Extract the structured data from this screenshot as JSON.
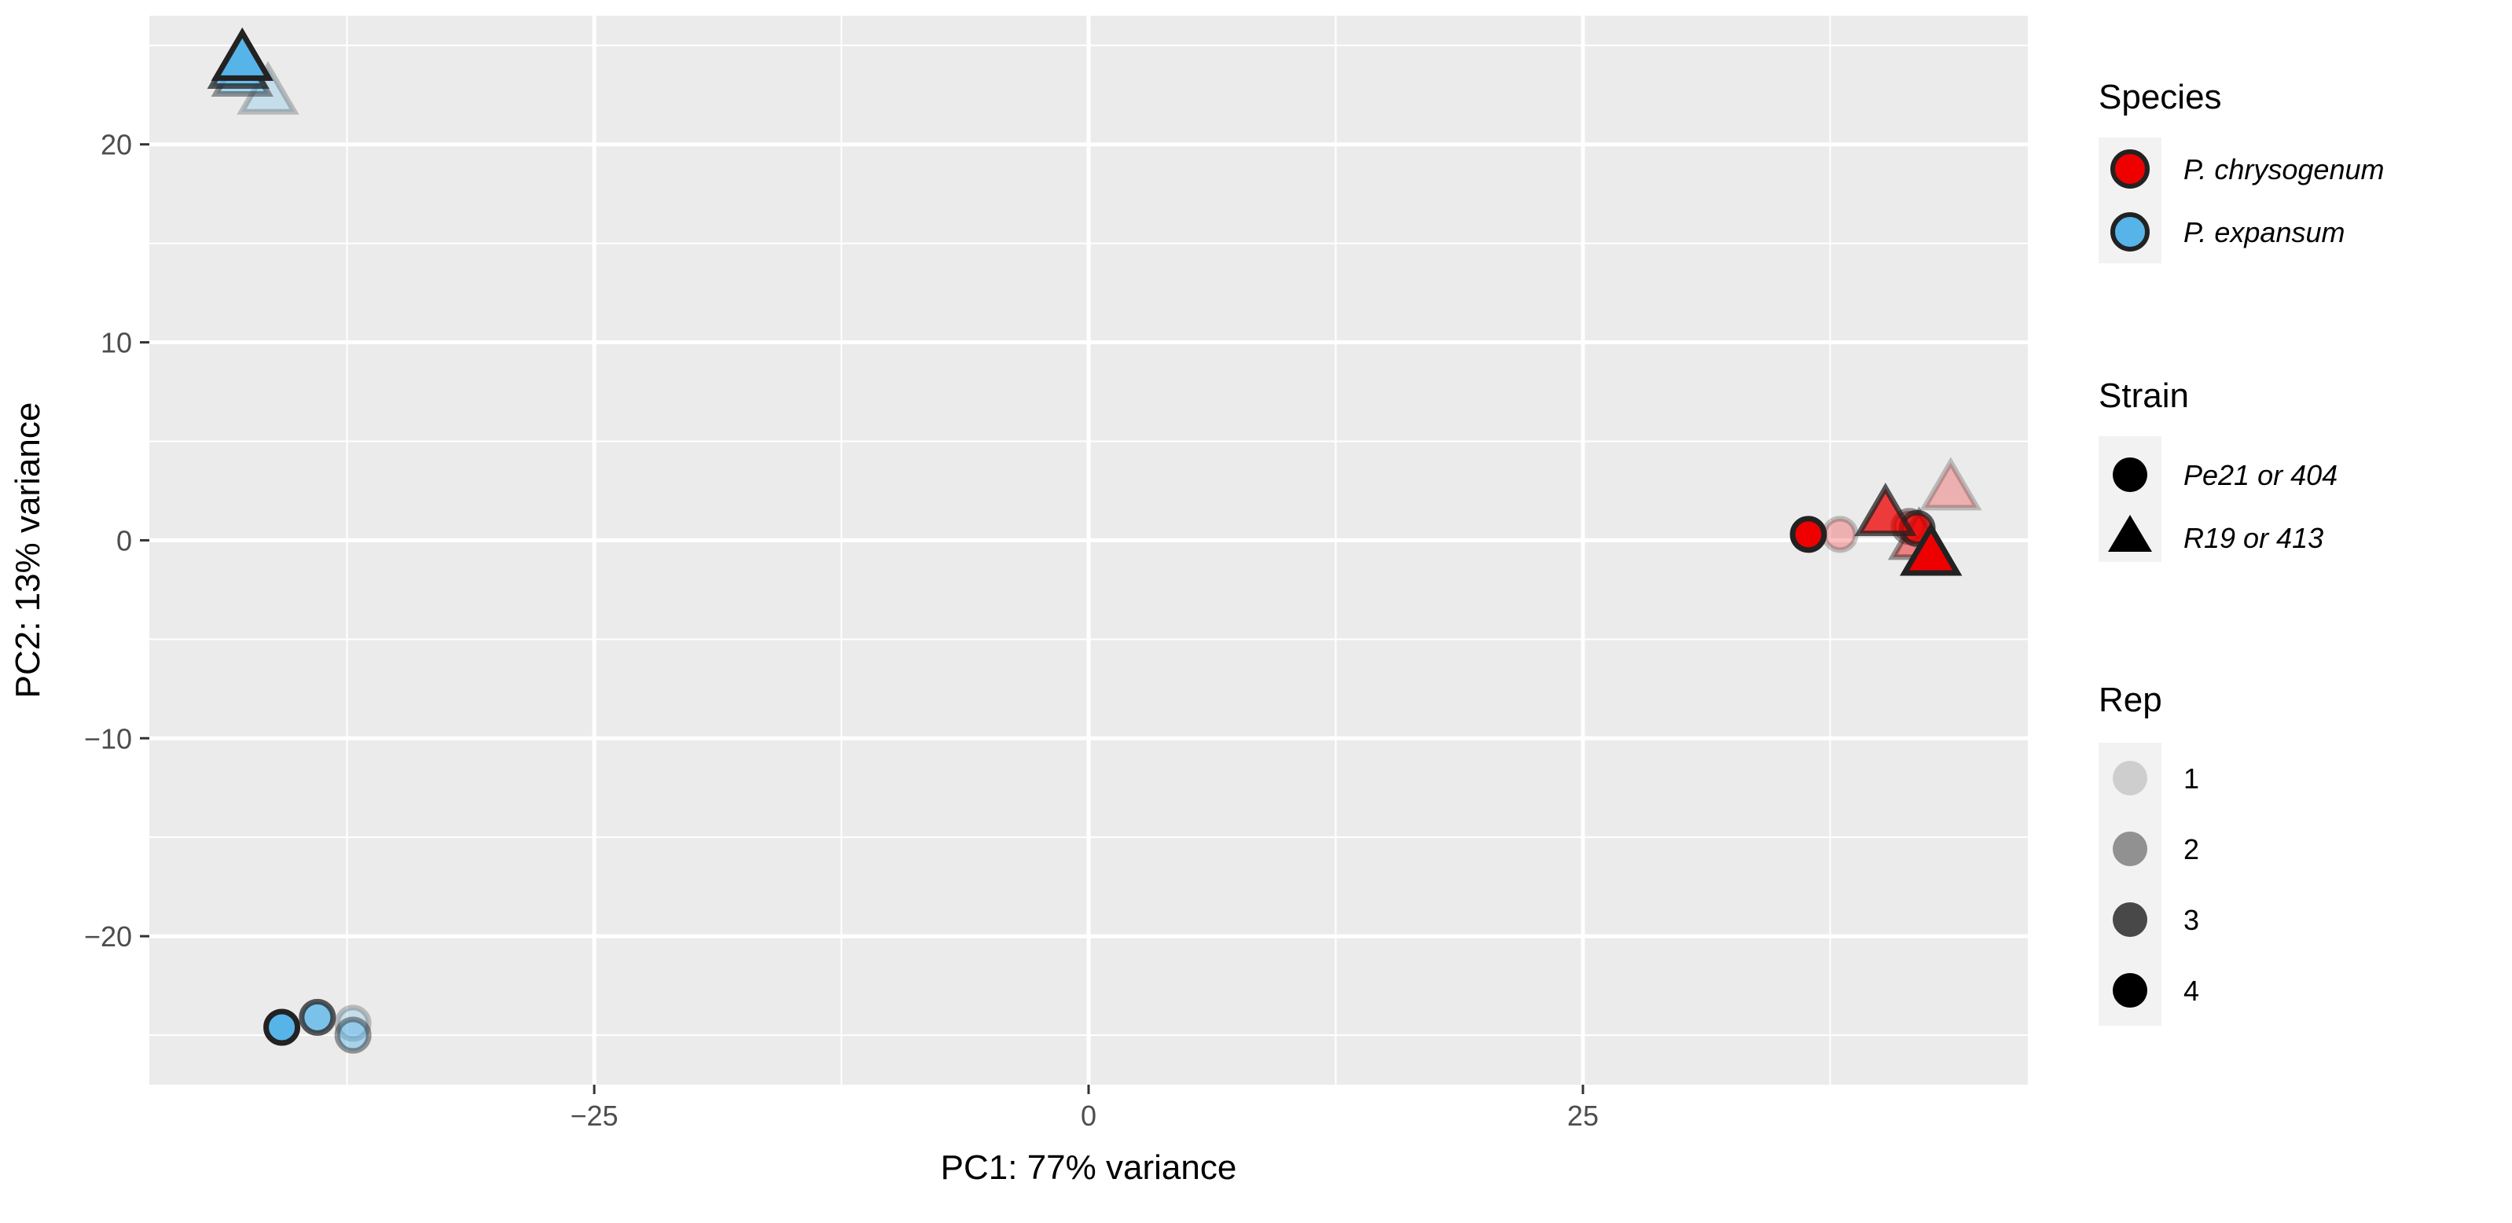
{
  "chart_data": {
    "type": "scatter",
    "xlabel": "PC1: 77% variance",
    "ylabel": "PC2: 13% variance",
    "xlim": [
      -47.5,
      47.5
    ],
    "ylim": [
      -27.5,
      26.5
    ],
    "x_ticks": [
      -25,
      0,
      25
    ],
    "x_tick_labels": [
      "−25",
      "0",
      "25"
    ],
    "y_ticks": [
      -20,
      -10,
      0,
      10,
      20
    ],
    "y_tick_labels": [
      "−20",
      "−10",
      "0",
      "10",
      "20"
    ],
    "grid": true,
    "legend_position": "right",
    "species_colors": {
      "P. chrysogenum": "#ee0000",
      "P. expansum": "#56b4e9"
    },
    "rep_alpha": {
      "1": 0.25,
      "2": 0.45,
      "3": 0.75,
      "4": 1.0
    },
    "points": [
      {
        "x": -41.5,
        "y": 22.6,
        "species": "P. expansum",
        "strain": "R19 or 413",
        "rep": "1"
      },
      {
        "x": -42.8,
        "y": 23.5,
        "species": "P. expansum",
        "strain": "R19 or 413",
        "rep": "2"
      },
      {
        "x": -43.0,
        "y": 23.9,
        "species": "P. expansum",
        "strain": "R19 or 413",
        "rep": "3"
      },
      {
        "x": -42.8,
        "y": 24.3,
        "species": "P. expansum",
        "strain": "R19 or 413",
        "rep": "4"
      },
      {
        "x": -37.2,
        "y": -24.4,
        "species": "P. expansum",
        "strain": "Pe21 or 404",
        "rep": "1"
      },
      {
        "x": -37.2,
        "y": -25.0,
        "species": "P. expansum",
        "strain": "Pe21 or 404",
        "rep": "2"
      },
      {
        "x": -39.0,
        "y": -24.1,
        "species": "P. expansum",
        "strain": "Pe21 or 404",
        "rep": "3"
      },
      {
        "x": -40.8,
        "y": -24.6,
        "species": "P. expansum",
        "strain": "Pe21 or 404",
        "rep": "4"
      },
      {
        "x": 38.0,
        "y": 0.3,
        "species": "P. chrysogenum",
        "strain": "Pe21 or 404",
        "rep": "1"
      },
      {
        "x": 41.5,
        "y": 0.7,
        "species": "P. chrysogenum",
        "strain": "Pe21 or 404",
        "rep": "2"
      },
      {
        "x": 41.9,
        "y": 0.6,
        "species": "P. chrysogenum",
        "strain": "Pe21 or 404",
        "rep": "3"
      },
      {
        "x": 36.4,
        "y": 0.3,
        "species": "P. chrysogenum",
        "strain": "Pe21 or 404",
        "rep": "4"
      },
      {
        "x": 43.6,
        "y": 2.6,
        "species": "P. chrysogenum",
        "strain": "R19 or 413",
        "rep": "1"
      },
      {
        "x": 42.0,
        "y": 0.1,
        "species": "P. chrysogenum",
        "strain": "R19 or 413",
        "rep": "2"
      },
      {
        "x": 40.3,
        "y": 1.3,
        "species": "P. chrysogenum",
        "strain": "R19 or 413",
        "rep": "3"
      },
      {
        "x": 42.6,
        "y": -0.7,
        "species": "P. chrysogenum",
        "strain": "R19 or 413",
        "rep": "4"
      }
    ]
  },
  "legend": {
    "species": {
      "title": "Species",
      "items": [
        {
          "label": "P. chrysogenum",
          "color": "#ee0000"
        },
        {
          "label": "P. expansum",
          "color": "#56b4e9"
        }
      ]
    },
    "strain": {
      "title": "Strain",
      "items": [
        {
          "label": "Pe21 or 404",
          "shape": "circle"
        },
        {
          "label": "R19 or 413",
          "shape": "triangle"
        }
      ]
    },
    "rep": {
      "title": "Rep",
      "items": [
        {
          "label": "1",
          "alpha": 0.25
        },
        {
          "label": "2",
          "alpha": 0.45
        },
        {
          "label": "3",
          "alpha": 0.75
        },
        {
          "label": "4",
          "alpha": 1.0
        }
      ]
    }
  }
}
